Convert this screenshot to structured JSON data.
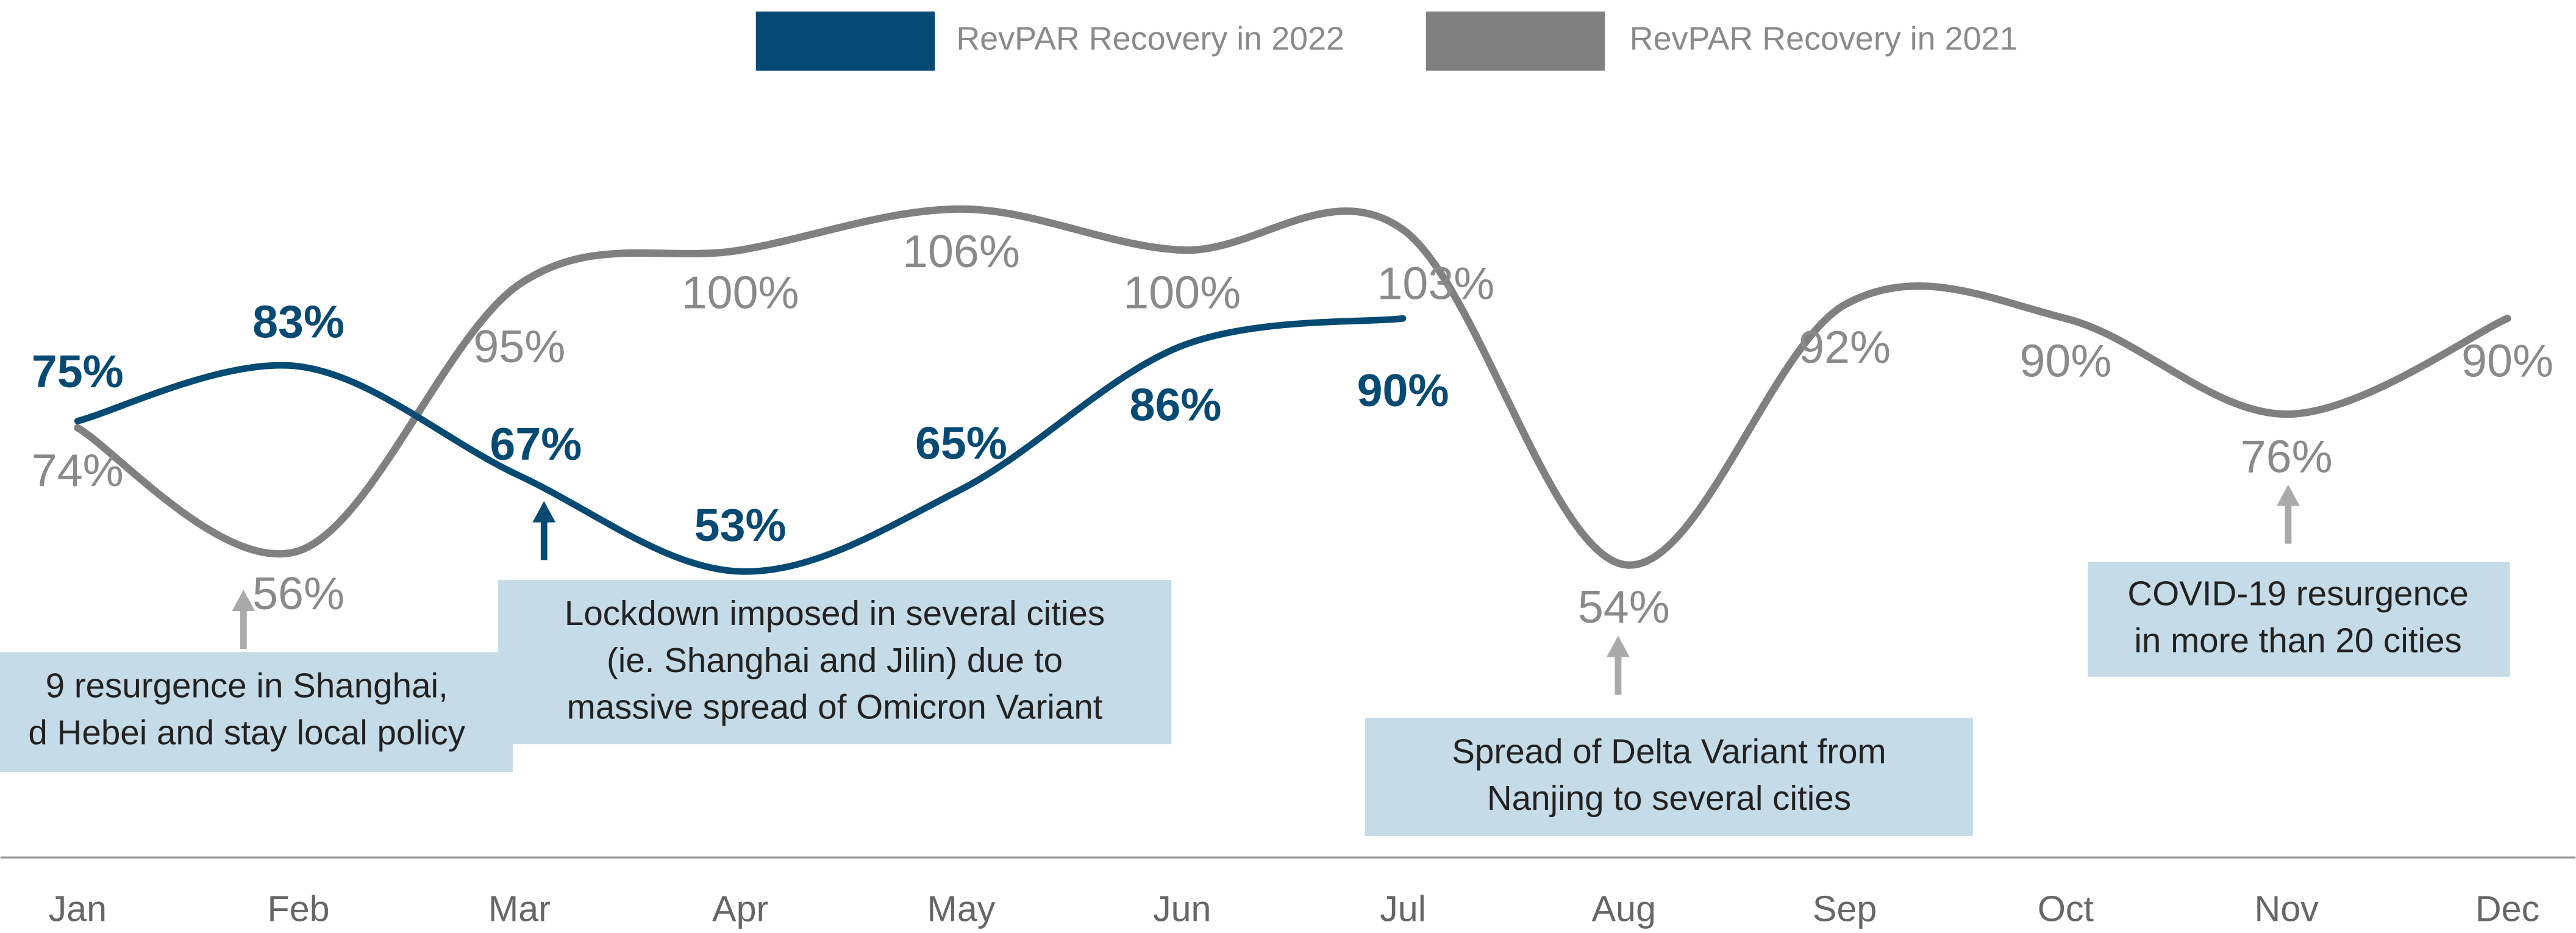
{
  "chart_data": {
    "type": "line",
    "categories": [
      "Jan",
      "Feb",
      "Mar",
      "Apr",
      "May",
      "Jun",
      "Jul",
      "Aug",
      "Sep",
      "Oct",
      "Nov",
      "Dec"
    ],
    "series": [
      {
        "name": "RevPAR Recovery in 2022",
        "color": "#054a73",
        "values": [
          75,
          83,
          67,
          53,
          65,
          86,
          90,
          null,
          null,
          null,
          null,
          null
        ],
        "value_labels": [
          "75%",
          "83%",
          "67%",
          "53%",
          "65%",
          "86%",
          "90%",
          null,
          null,
          null,
          null,
          null
        ]
      },
      {
        "name": "RevPAR Recovery in 2021",
        "color": "#808080",
        "values": [
          74,
          56,
          95,
          100,
          106,
          100,
          103,
          54,
          92,
          90,
          76,
          90
        ],
        "value_labels": [
          "74%",
          "56%",
          "95%",
          "100%",
          "106%",
          "100%",
          "103%",
          "54%",
          "92%",
          "90%",
          "76%",
          "90%"
        ]
      }
    ],
    "ylim": [
      40,
      120
    ],
    "annotations": [
      {
        "lines": [
          "9 resurgence in Shanghai,",
          "d Hebei and stay local policy"
        ]
      },
      {
        "lines": [
          "Lockdown imposed in several cities",
          "(ie. Shanghai and Jilin) due to",
          "massive spread of Omicron Variant"
        ]
      },
      {
        "lines": [
          "Spread of Delta Variant from",
          "Nanjing to several cities"
        ]
      },
      {
        "lines": [
          "COVID-19 resurgence",
          "in more than 20 cities"
        ]
      }
    ]
  }
}
